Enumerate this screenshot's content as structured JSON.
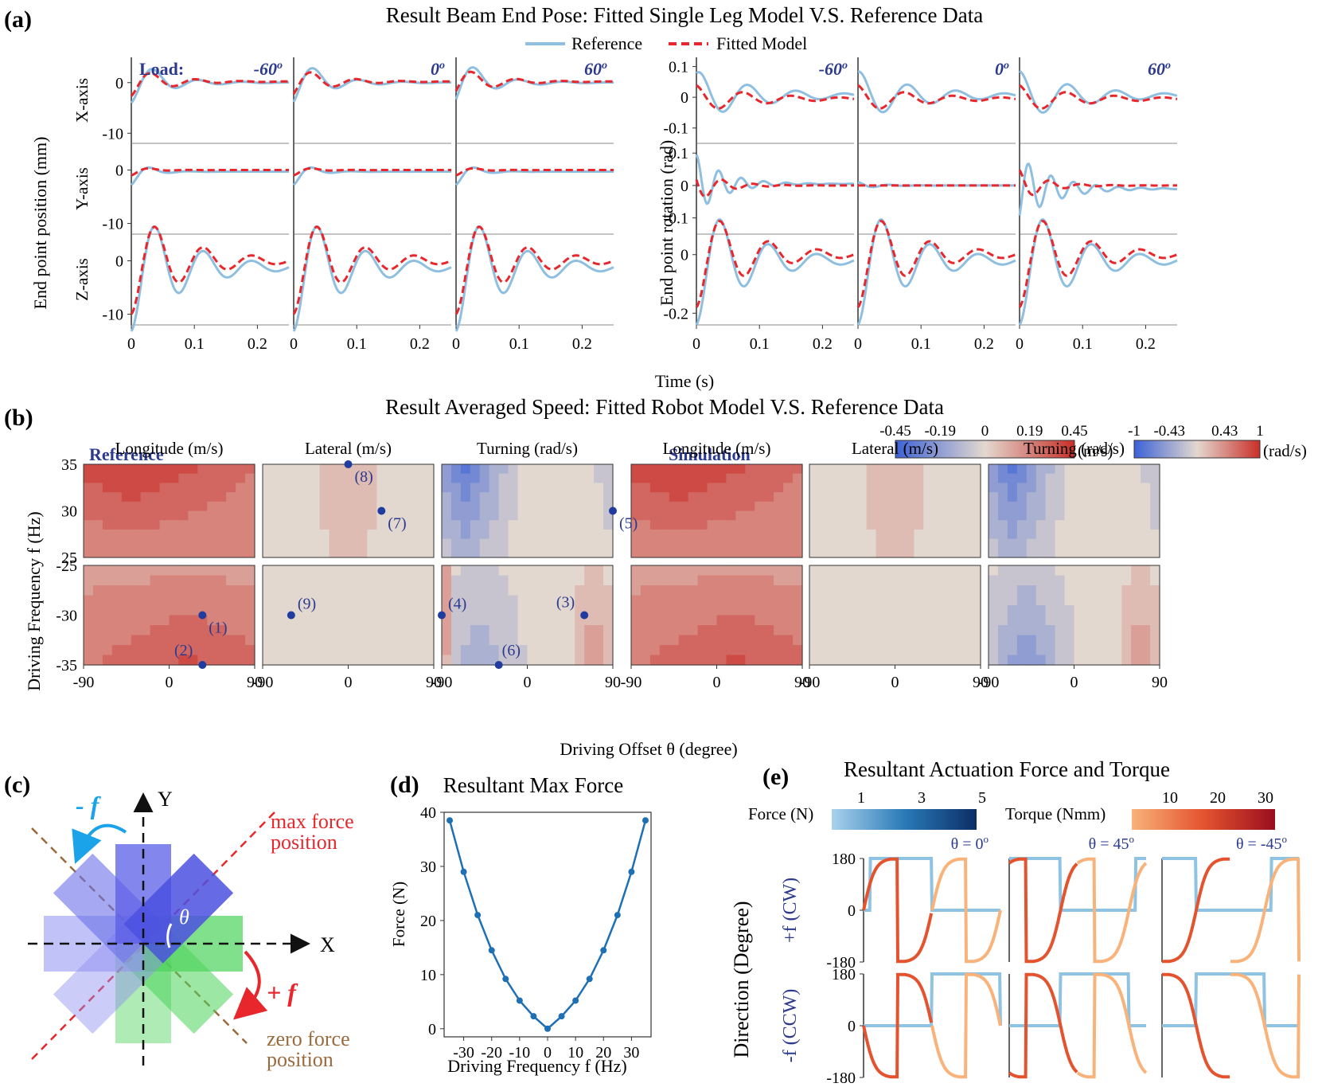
{
  "panel_labels": {
    "a": "(a)",
    "b": "(b)",
    "c": "(c)",
    "d": "(d)",
    "e": "(e)"
  },
  "colors": {
    "reference": "#8fbfe0",
    "fitted": "#e8272c",
    "navy": "#2b3a8f",
    "cmap_neg": "#3c62d6",
    "cmap_mid": "#e3d8cf",
    "cmap_pos": "#c82f28",
    "red": "#e8272c",
    "cyan": "#1aa3e8",
    "brown": "#9b6a3c",
    "purple": "#5a5ee6",
    "green": "#4cd35a"
  },
  "panel_a": {
    "title": "Result Beam End Pose: Fitted Single Leg Model V.S. Reference Data",
    "legend": {
      "reference": "Reference",
      "fitted": "Fitted Model"
    },
    "load_label": "Load:",
    "loads": [
      "-60",
      "0",
      "60"
    ],
    "degree_sup": "o",
    "ylabel_pos": "End point position (mm)",
    "ylabel_rot": "End point rotation (rad)",
    "row_labels": [
      "X-axis",
      "Y-axis",
      "Z-axis"
    ],
    "xlabel": "Time (s)",
    "xticks": [
      "0",
      "0.1",
      "0.2"
    ],
    "pos_yticks": [
      [
        "0",
        "-10"
      ],
      [
        "0",
        "-10"
      ],
      [
        "0",
        "-10"
      ]
    ],
    "rot_yticks": [
      [
        "0.1",
        "0",
        "-0.1"
      ],
      [
        "0.1",
        "0",
        "-0.1"
      ],
      [
        "0",
        "-0.2"
      ]
    ]
  },
  "panel_b": {
    "title": "Result Averaged Speed: Fitted Robot Model V.S. Reference Data",
    "group_reference": "Reference",
    "group_simulation": "Simulation",
    "subplot_titles": [
      "Longitude (m/s)",
      "Lateral (m/s)",
      "Turning (rad/s)",
      "Longitude (m/s)",
      "Lateral (m/s)",
      "Turning (rad/s)"
    ],
    "ylabel": "Driving Frequency f (Hz)",
    "xlabel": "Driving Offset θ (degree)",
    "yticks_top": [
      "35",
      "30",
      "25"
    ],
    "yticks_bottom": [
      "-25",
      "-30",
      "-35"
    ],
    "xticks": [
      "-90",
      "0",
      "90"
    ],
    "cbar_speed": {
      "ticks": [
        "-0.45",
        "-0.19",
        "0",
        "0.19",
        "0.45"
      ],
      "unit": "(m/s)"
    },
    "cbar_turn": {
      "ticks": [
        "-1",
        "-0.43",
        "0.43",
        "1"
      ],
      "unit": "(rad/s)"
    },
    "markers": [
      {
        "label": "(1)",
        "panel": 0,
        "theta": 35,
        "f": -30
      },
      {
        "label": "(2)",
        "panel": 0,
        "theta": 35,
        "f": -35
      },
      {
        "label": "(8)",
        "panel": 1,
        "theta": 0,
        "f": 35
      },
      {
        "label": "(7)",
        "panel": 1,
        "theta": 35,
        "f": 30
      },
      {
        "label": "(9)",
        "panel": 1,
        "theta": -60,
        "f": -30
      },
      {
        "label": "(5)",
        "panel": 2,
        "theta": 90,
        "f": 30
      },
      {
        "label": "(4)",
        "panel": 2,
        "theta": -90,
        "f": -30
      },
      {
        "label": "(3)",
        "panel": 2,
        "theta": 60,
        "f": -30
      },
      {
        "label": "(6)",
        "panel": 2,
        "theta": -30,
        "f": -35
      }
    ]
  },
  "panel_c": {
    "x_axis": "X",
    "y_axis": "Y",
    "neg_f": "- f",
    "pos_f": "+ f",
    "theta": "θ",
    "max_force": [
      "max force",
      "position"
    ],
    "zero_force": [
      "zero force",
      "position"
    ]
  },
  "chart_data": [
    {
      "type": "line",
      "title": "Resultant Max Force",
      "xlabel": "Driving Frequency f (Hz)",
      "ylabel": "Force (N)",
      "x": [
        -35,
        -30,
        -25,
        -20,
        -15,
        -10,
        -5,
        0,
        5,
        10,
        15,
        20,
        25,
        30,
        35
      ],
      "values": [
        38.5,
        29.0,
        21.0,
        14.5,
        9.2,
        5.2,
        2.3,
        0.0,
        2.3,
        5.2,
        9.2,
        14.5,
        21.0,
        29.0,
        38.5
      ],
      "xlim": [
        -37,
        37
      ],
      "ylim": [
        -1.5,
        40
      ],
      "xticks": [
        "-30",
        "-20",
        "-10",
        "0",
        "10",
        "20",
        "30"
      ],
      "yticks": [
        "0",
        "10",
        "20",
        "30",
        "40"
      ]
    },
    {
      "type": "line",
      "title": "Resultant Actuation Force and Torque",
      "cbar_force": {
        "label": "Force (N)",
        "ticks": [
          "1",
          "3",
          "5"
        ]
      },
      "cbar_torque": {
        "label": "Torque (Nmm)",
        "ticks": [
          "10",
          "20",
          "30"
        ]
      },
      "col_titles": [
        "θ = 0",
        "θ = 45",
        "θ = -45"
      ],
      "degree_sup": "o",
      "ylabel": "Direction (Degree)",
      "row_labels": [
        "+f (CW)",
        "-f (CCW)"
      ],
      "yticks": [
        "180",
        "0",
        "-180"
      ],
      "ylim": [
        -180,
        180
      ]
    }
  ]
}
